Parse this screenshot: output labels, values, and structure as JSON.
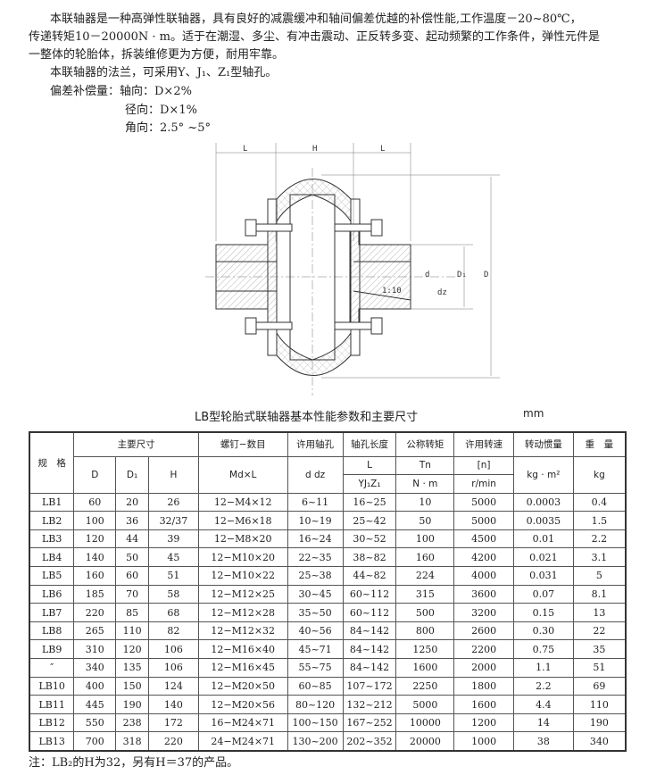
{
  "intro": {
    "line1": "本联轴器是一种高弹性联轴器，具有良好的减震缓冲和轴间偏差优越的补偿性能,工作温度－20~80℃，",
    "line2": "传递转矩10－20000N · m。适于在潮湿、多尘、有冲击震动、正反转多变、起动频繁的工作条件，弹性元件是",
    "line3": "一整体的轮胎体，拆装维修更为方便，耐用牢靠。",
    "line4": "本联轴器的法兰，可采用Y、J₁、Z₁型轴孔。",
    "line5": "偏差补偿量：轴向：D×2%",
    "line6": "径向：D×1%",
    "line7": "角向：2.5° ~5°"
  },
  "diagram": {
    "labels": {
      "L": "L",
      "H": "H",
      "d": "d",
      "dz": "dz",
      "D1": "D₁",
      "D": "D",
      "taper": "1:10"
    }
  },
  "table": {
    "title": "LB型轮胎式联轴器基本性能参数和主要尺寸",
    "unit": "mm",
    "headers": {
      "spec": "规　格",
      "main_dims": "主要尺寸",
      "bolts": "螺钉−数目",
      "bore": "许用轴孔",
      "bore_len": "轴孔长度",
      "torque": "公称转矩",
      "speed": "许用转速",
      "inertia": "转动惯量",
      "weight": "重　量",
      "D": "D",
      "D1": "D₁",
      "H": "H",
      "bolts_sub": "Md×L",
      "bore_sub": "d dz",
      "L": "L",
      "YJZ": "YJ₁Z₁",
      "Tn": "Tn",
      "Tn_unit": "N · m",
      "n": "[n]",
      "n_unit": "r/min",
      "inertia_unit": "kg · m²",
      "weight_unit": "kg"
    },
    "rows": [
      [
        "LB1",
        "60",
        "20",
        "26",
        "12−M4×12",
        "6~11",
        "16~25",
        "10",
        "5000",
        "0.0003",
        "0.4"
      ],
      [
        "LB2",
        "100",
        "36",
        "32/37",
        "12−M6×18",
        "10~19",
        "25~42",
        "50",
        "5000",
        "0.0035",
        "1.5"
      ],
      [
        "LB3",
        "120",
        "44",
        "39",
        "12−M8×20",
        "16~24",
        "30~52",
        "100",
        "4500",
        "0.01",
        "2.2"
      ],
      [
        "LB4",
        "140",
        "50",
        "45",
        "12−M10×20",
        "22~35",
        "38~82",
        "160",
        "4200",
        "0.021",
        "3.1"
      ],
      [
        "LB5",
        "160",
        "60",
        "51",
        "12−M10×22",
        "25~38",
        "44~82",
        "224",
        "4000",
        "0.031",
        "5"
      ],
      [
        "LB6",
        "185",
        "70",
        "58",
        "12−M12×25",
        "30~45",
        "60~112",
        "315",
        "3600",
        "0.07",
        "8.1"
      ],
      [
        "LB7",
        "220",
        "85",
        "68",
        "12−M12×28",
        "35~50",
        "60~112",
        "500",
        "3200",
        "0.15",
        "13"
      ],
      [
        "LB8",
        "265",
        "110",
        "82",
        "12−M12×32",
        "40~56",
        "84~142",
        "800",
        "2600",
        "0.30",
        "22"
      ],
      [
        "LB9",
        "310",
        "120",
        "106",
        "12−M16×40",
        "45~71",
        "84~142",
        "1250",
        "2200",
        "0.75",
        "35"
      ],
      [
        "″",
        "340",
        "135",
        "106",
        "12−M16×45",
        "55~75",
        "84~142",
        "1600",
        "2000",
        "1.1",
        "51"
      ],
      [
        "LB10",
        "400",
        "150",
        "124",
        "12−M20×50",
        "60~85",
        "107~172",
        "2250",
        "1800",
        "2.2",
        "69"
      ],
      [
        "LB11",
        "445",
        "190",
        "140",
        "12−M20×56",
        "80~120",
        "132~212",
        "5000",
        "1600",
        "4.4",
        "110"
      ],
      [
        "LB12",
        "550",
        "238",
        "172",
        "16−M24×71",
        "100~150",
        "167~252",
        "10000",
        "1200",
        "14",
        "190"
      ],
      [
        "LB13",
        "700",
        "318",
        "220",
        "24−M24×71",
        "130~200",
        "202~352",
        "20000",
        "1000",
        "38",
        "340"
      ]
    ]
  },
  "note": "注：LB₂的H为32，另有H＝37的产品。"
}
